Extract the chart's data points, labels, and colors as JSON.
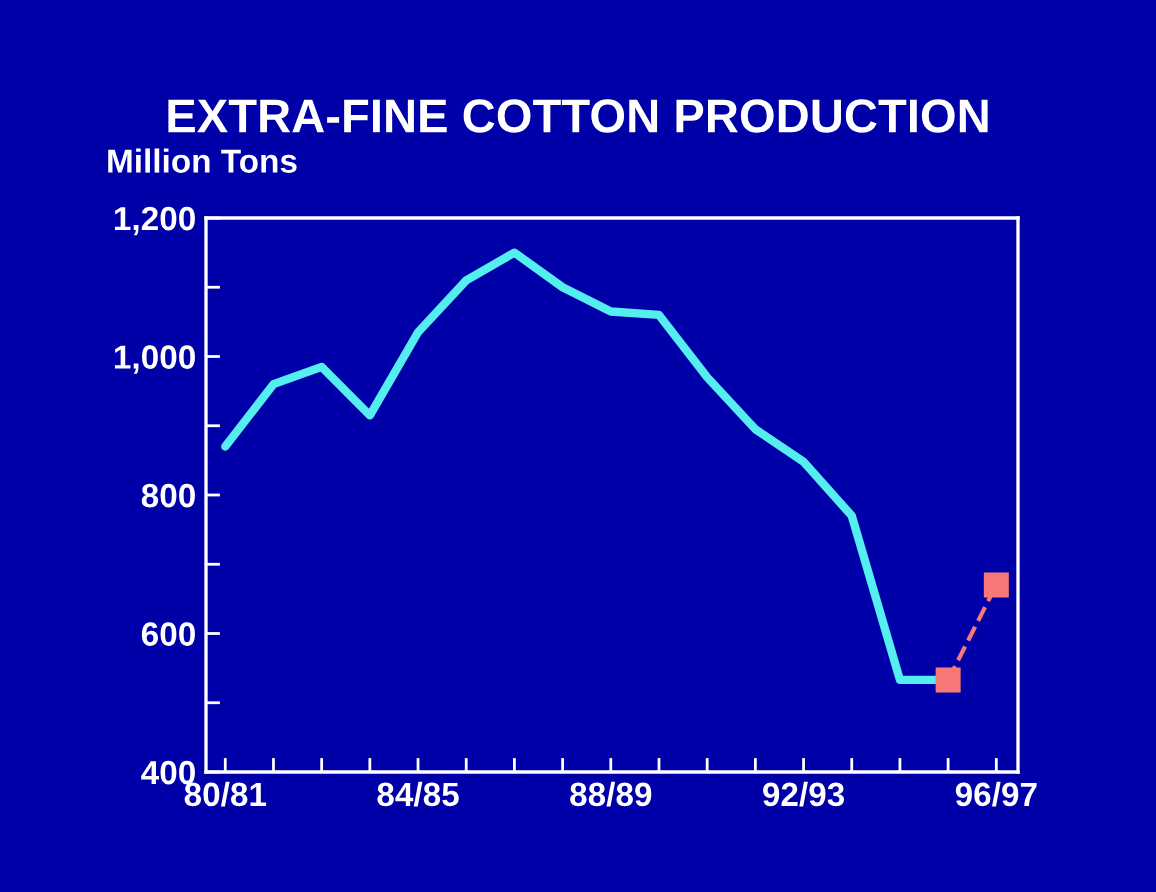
{
  "chart_data": {
    "type": "line",
    "title": "EXTRA-FINE COTTON PRODUCTION",
    "ylabel": "Million Tons",
    "categories": [
      "80/81",
      null,
      null,
      null,
      "84/85",
      null,
      null,
      null,
      "88/89",
      null,
      null,
      null,
      "92/93",
      null,
      null,
      null,
      "96/97"
    ],
    "series": [
      {
        "color": "#55eef0",
        "line_style": "solid",
        "marker": "none",
        "values": [
          870,
          960,
          985,
          915,
          1035,
          1110,
          1150,
          1100,
          1065,
          1060,
          970,
          895,
          848,
          770,
          533,
          533,
          null
        ]
      },
      {
        "color": "#f87878",
        "line_style": "dashed",
        "marker": "square",
        "values": [
          null,
          null,
          null,
          null,
          null,
          null,
          null,
          null,
          null,
          null,
          null,
          null,
          null,
          null,
          null,
          533,
          670
        ]
      }
    ],
    "ylim": [
      400,
      1200
    ],
    "yticks": [
      400,
      {
        "value": 500,
        "label": null
      },
      600,
      {
        "value": 700,
        "label": null
      },
      800,
      {
        "value": 900,
        "label": null
      },
      {
        "value": 1000,
        "label": "1,000"
      },
      {
        "value": 1100,
        "label": null
      },
      {
        "value": 1200,
        "label": "1,200"
      }
    ],
    "grid": false,
    "legend": false
  }
}
